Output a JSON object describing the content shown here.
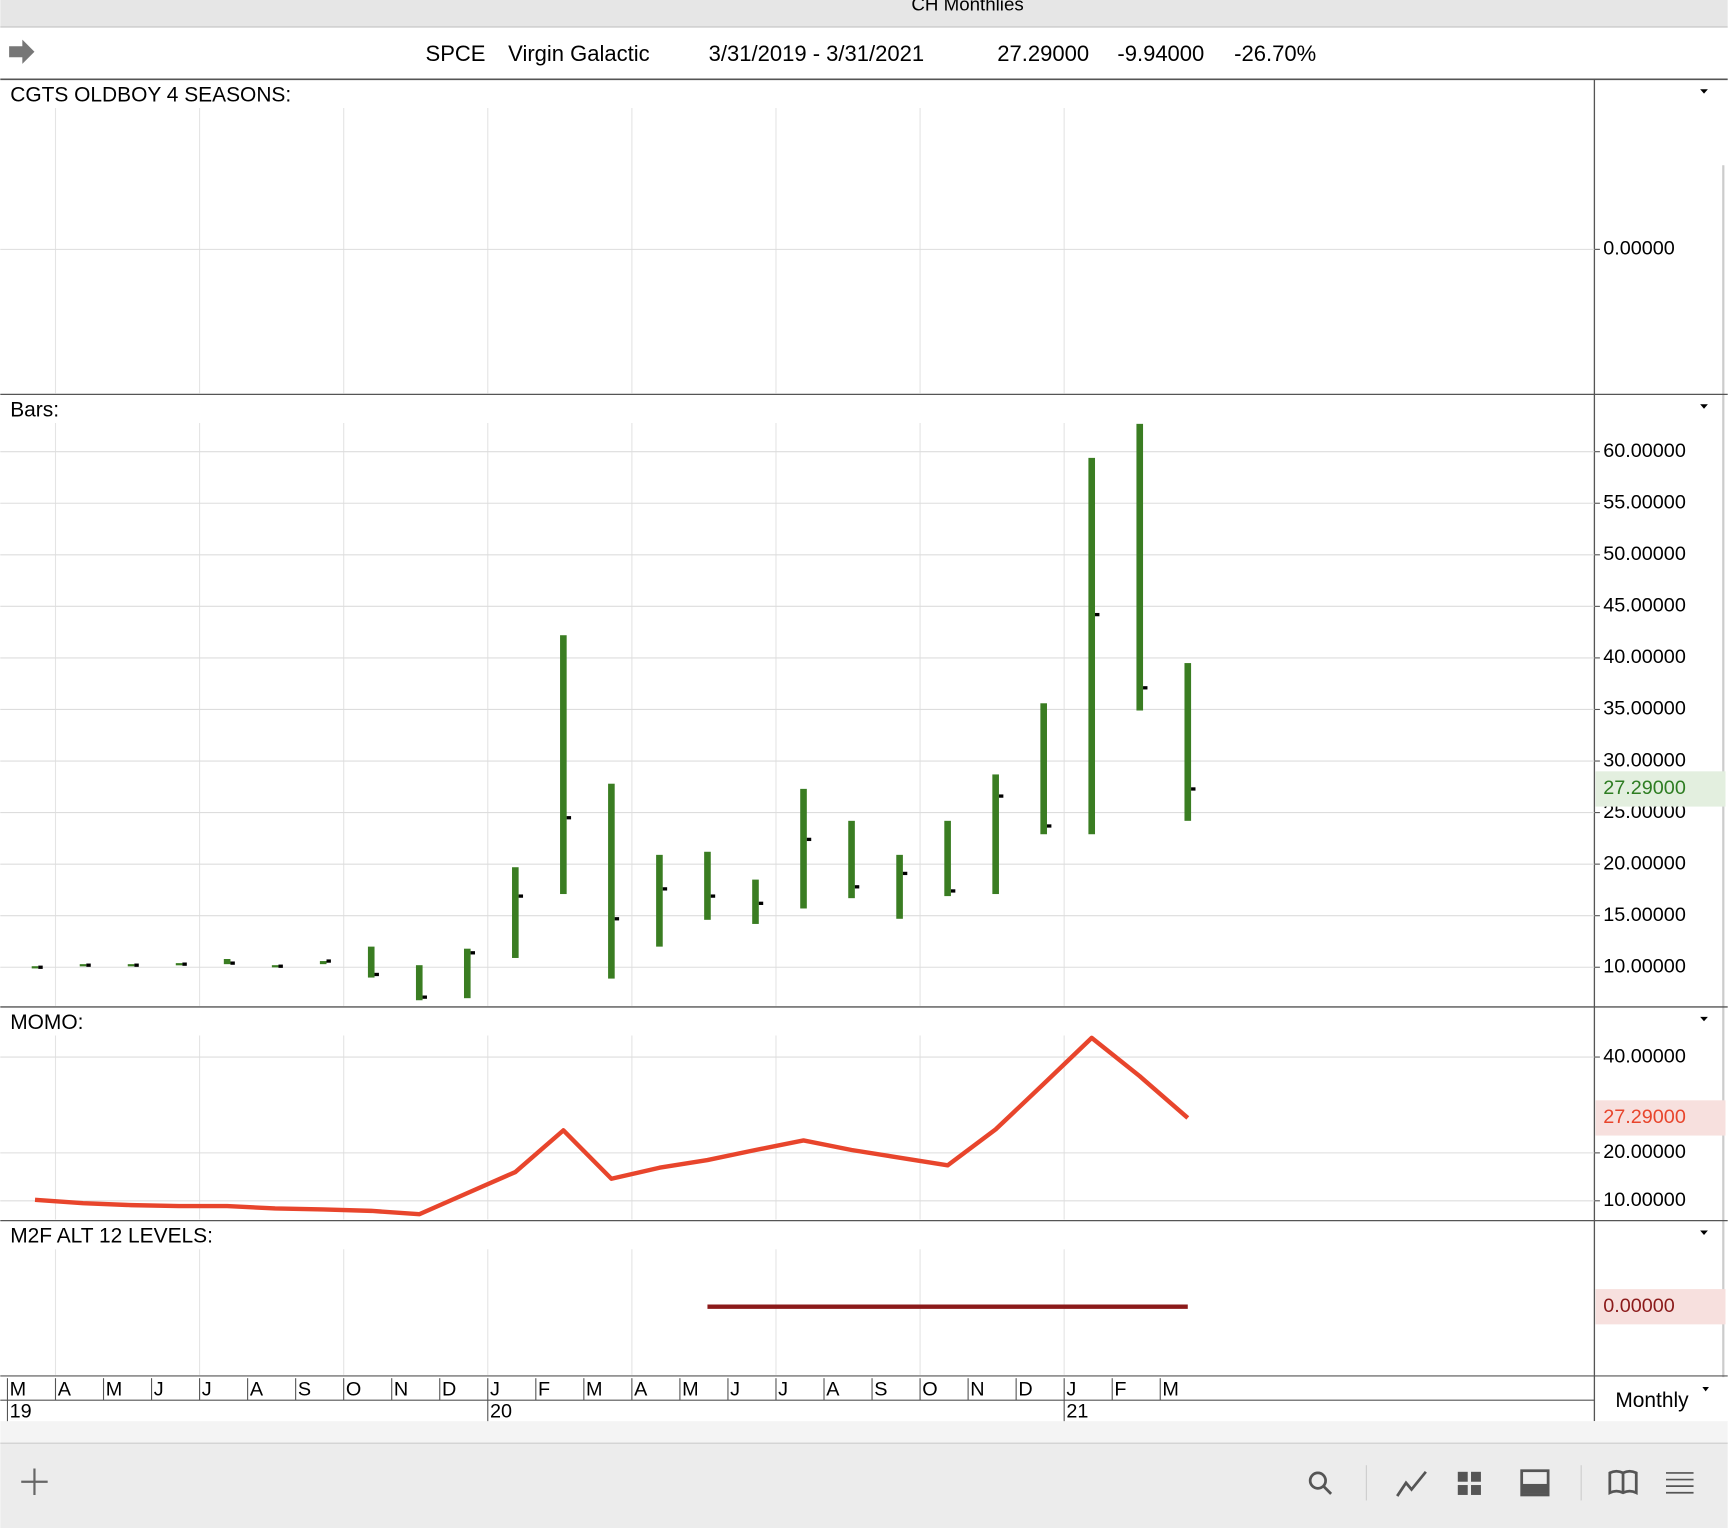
{
  "window": {
    "title": "CH Monthlies"
  },
  "header": {
    "symbol": "SPCE",
    "name": "Virgin Galactic",
    "range": "3/31/2019 - 3/31/2021",
    "last": "27.29000",
    "change": "-9.94000",
    "change_pct": "-26.70%"
  },
  "chart_data": [
    {
      "type": "line",
      "title": "CGTS OLDBOY 4 SEASONS:",
      "ylim": [
        -0.92,
        1.08
      ],
      "yticks": [
        {
          "value": 0,
          "label": "0.00000"
        }
      ]
    },
    {
      "type": "ohlc",
      "title": "Bars:",
      "color": "#3a7d22",
      "categories": [
        "M",
        "A",
        "M",
        "J",
        "J",
        "A",
        "S",
        "O",
        "N",
        "D",
        "J",
        "F",
        "M",
        "A",
        "M",
        "J",
        "J",
        "A",
        "S",
        "O",
        "N",
        "D",
        "J",
        "F",
        "M"
      ],
      "year_labels": [
        "19",
        null,
        null,
        null,
        null,
        null,
        null,
        null,
        null,
        null,
        "20",
        null,
        null,
        null,
        null,
        null,
        null,
        null,
        null,
        null,
        null,
        null,
        "21",
        null,
        null
      ],
      "high": [
        10.1,
        10.3,
        10.3,
        10.4,
        10.8,
        10.2,
        10.6,
        12.0,
        10.2,
        11.8,
        19.7,
        42.2,
        27.8,
        20.9,
        21.2,
        18.5,
        27.3,
        24.2,
        20.9,
        24.2,
        28.7,
        35.6,
        59.4,
        62.7,
        39.5
      ],
      "low": [
        9.9,
        10.1,
        10.1,
        10.2,
        10.3,
        10.0,
        10.3,
        9.0,
        6.8,
        7.0,
        10.9,
        17.1,
        8.9,
        12.0,
        14.6,
        14.2,
        15.7,
        16.7,
        14.7,
        16.9,
        17.1,
        22.9,
        22.9,
        34.9,
        24.2
      ],
      "close": [
        10.0,
        10.2,
        10.2,
        10.3,
        10.4,
        10.1,
        10.6,
        9.3,
        7.1,
        11.4,
        16.9,
        24.5,
        14.7,
        17.6,
        16.9,
        16.2,
        22.4,
        17.8,
        19.1,
        17.4,
        26.6,
        23.7,
        44.2,
        37.1,
        27.29
      ],
      "ylim": [
        6.26,
        65.45
      ],
      "yticks": [
        {
          "value": 10,
          "label": "10.00000"
        },
        {
          "value": 15,
          "label": "15.00000"
        },
        {
          "value": 20,
          "label": "20.00000"
        },
        {
          "value": 25,
          "label": "25.00000"
        },
        {
          "value": 30,
          "label": "30.00000"
        },
        {
          "value": 35,
          "label": "35.00000"
        },
        {
          "value": 40,
          "label": "40.00000"
        },
        {
          "value": 45,
          "label": "45.00000"
        },
        {
          "value": 50,
          "label": "50.00000"
        },
        {
          "value": 55,
          "label": "55.00000"
        },
        {
          "value": 60,
          "label": "60.00000"
        }
      ],
      "last_value": {
        "value": 27.29,
        "label": "27.29000"
      }
    },
    {
      "type": "line",
      "title": "MOMO:",
      "color": "#e8452c",
      "values": [
        10.2,
        9.5,
        9.1,
        8.9,
        8.9,
        8.4,
        8.2,
        7.9,
        7.2,
        11.6,
        16.0,
        24.7,
        14.6,
        16.9,
        18.5,
        20.6,
        22.6,
        20.6,
        19.0,
        17.4,
        24.9,
        34.4,
        44.0,
        36.0,
        27.29
      ],
      "ylim": [
        6.09,
        50.23
      ],
      "yticks": [
        {
          "value": 10,
          "label": "10.00000"
        },
        {
          "value": 20,
          "label": "20.00000"
        },
        {
          "value": 40,
          "label": "40.00000"
        }
      ],
      "last_value": {
        "value": 27.29,
        "label": "27.29000"
      }
    },
    {
      "type": "line",
      "title": "M2F ALT 12 LEVELS:",
      "color": "#8b1a1a",
      "values": [
        null,
        null,
        null,
        null,
        null,
        null,
        null,
        null,
        null,
        null,
        null,
        null,
        null,
        null,
        0,
        0,
        0,
        0,
        0,
        0,
        0,
        0,
        0,
        0,
        0
      ],
      "ylim": [
        -0.89,
        1.11
      ],
      "last_value": {
        "value": 0,
        "label": "0.00000"
      }
    }
  ],
  "footer": {
    "period": "Monthly"
  }
}
